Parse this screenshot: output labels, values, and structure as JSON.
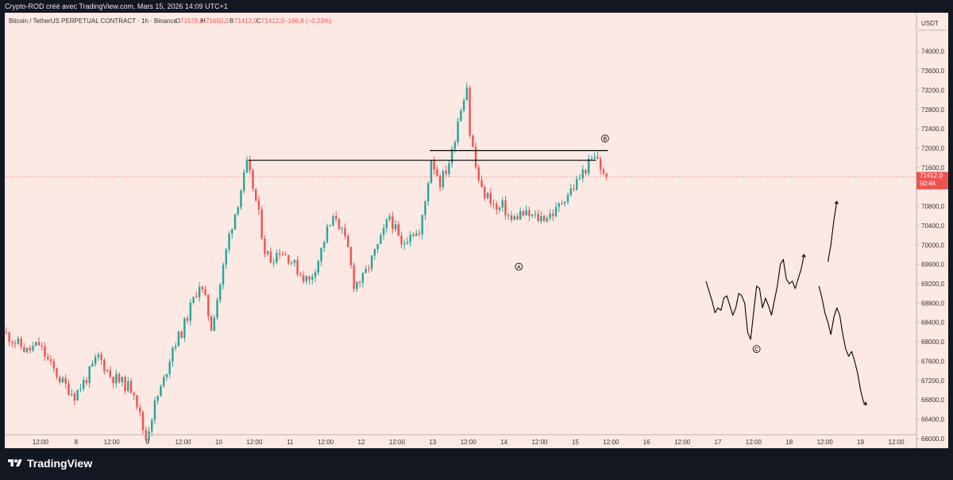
{
  "header": {
    "attribution": "Crypto-ROD créé avec TradingView.com, Mars 15, 2026 14:09 UTC+1"
  },
  "footer": {
    "logo_text": "TradingView"
  },
  "colors": {
    "panel_bg": "#fde9e4",
    "up": "#26a69a",
    "down": "#ef5350",
    "price_tag": "#ef5350",
    "text": "#333333"
  },
  "chart_data": {
    "type": "candlestick",
    "symbol_line": {
      "name": "Bitcoin / TetherUS PERPETUAL CONTRACT · 1h · Binance",
      "open_label": "O",
      "open": "71578,8",
      "high_label": "H",
      "high": "71650,0",
      "low_label": "B",
      "low": "71412,0",
      "close_label": "C",
      "close": "71412,0",
      "change": "−166,8 (−0,23%)"
    },
    "currency": "USDT",
    "ylim": [
      65800,
      74800
    ],
    "y_ticks": [
      "74000,0",
      "73600,0",
      "73200,0",
      "72800,0",
      "72400,0",
      "72000,0",
      "71600,0",
      "71200,0",
      "70800,0",
      "70400,0",
      "70000,0",
      "69600,0",
      "69200,0",
      "68800,0",
      "68400,0",
      "68000,0",
      "67600,0",
      "67200,0",
      "66800,0",
      "66400,0",
      "66000,0"
    ],
    "y_tick_values": [
      74000,
      73600,
      73200,
      72800,
      72400,
      72000,
      71600,
      71200,
      70800,
      70400,
      70000,
      69600,
      69200,
      68800,
      68400,
      68000,
      67600,
      67200,
      66800,
      66400,
      66000
    ],
    "x_ticks": [
      "12:00",
      "8",
      "12:00",
      "9",
      "12:00",
      "10",
      "12:00",
      "11",
      "12:00",
      "12",
      "12:00",
      "13",
      "12:00",
      "14",
      "12:00",
      "15",
      "12:00",
      "16",
      "12:00",
      "17",
      "12:00",
      "18",
      "12:00",
      "19",
      "12:00"
    ],
    "x_tick_hours": [
      12,
      24,
      36,
      48,
      60,
      72,
      84,
      96,
      108,
      120,
      132,
      144,
      156,
      168,
      180,
      192,
      204,
      216,
      228,
      240,
      252,
      264,
      276,
      288,
      300
    ],
    "x_start_hour": 0,
    "x_end_hour": 302,
    "current_price": "71412,0",
    "countdown": "50:44",
    "current_price_value": 71412,
    "price_waypoints": [
      [
        0,
        68200
      ],
      [
        4,
        68000
      ],
      [
        8,
        67800
      ],
      [
        12,
        67950
      ],
      [
        16,
        67500
      ],
      [
        20,
        67150
      ],
      [
        24,
        66900
      ],
      [
        28,
        67250
      ],
      [
        32,
        67700
      ],
      [
        36,
        67300
      ],
      [
        40,
        67150
      ],
      [
        44,
        67000
      ],
      [
        47,
        66200
      ],
      [
        48,
        66000
      ],
      [
        51,
        66700
      ],
      [
        54,
        67200
      ],
      [
        57,
        67900
      ],
      [
        60,
        68200
      ],
      [
        63,
        68700
      ],
      [
        66,
        69200
      ],
      [
        68,
        68850
      ],
      [
        70,
        68300
      ],
      [
        73,
        69200
      ],
      [
        76,
        70200
      ],
      [
        79,
        70900
      ],
      [
        82,
        71650
      ],
      [
        84,
        71200
      ],
      [
        86,
        70600
      ],
      [
        88,
        69900
      ],
      [
        90,
        69700
      ],
      [
        93,
        69900
      ],
      [
        96,
        69750
      ],
      [
        100,
        69400
      ],
      [
        103,
        69250
      ],
      [
        106,
        69700
      ],
      [
        109,
        70300
      ],
      [
        112,
        70600
      ],
      [
        114,
        70250
      ],
      [
        116,
        69900
      ],
      [
        118,
        69200
      ],
      [
        121,
        69300
      ],
      [
        124,
        69700
      ],
      [
        127,
        70100
      ],
      [
        130,
        70600
      ],
      [
        132,
        70300
      ],
      [
        134,
        69950
      ],
      [
        137,
        70300
      ],
      [
        140,
        70200
      ],
      [
        142,
        70900
      ],
      [
        144,
        71800
      ],
      [
        147,
        71300
      ],
      [
        149,
        71550
      ],
      [
        151,
        71900
      ],
      [
        153,
        72600
      ],
      [
        155,
        73100
      ],
      [
        156,
        73300
      ],
      [
        157,
        72300
      ],
      [
        158,
        72000
      ],
      [
        159,
        71600
      ],
      [
        161,
        71100
      ],
      [
        164,
        70950
      ],
      [
        166,
        70700
      ],
      [
        168,
        70800
      ],
      [
        171,
        70500
      ],
      [
        174,
        70650
      ],
      [
        177,
        70600
      ],
      [
        180,
        70550
      ],
      [
        183,
        70600
      ],
      [
        186,
        70700
      ],
      [
        189,
        71000
      ],
      [
        192,
        71200
      ],
      [
        195,
        71500
      ],
      [
        198,
        71750
      ],
      [
        200,
        71800
      ],
      [
        202,
        71412
      ]
    ],
    "horizontal_lines": [
      {
        "price": 71750,
        "from_hour": 82,
        "to_hour": 199
      },
      {
        "price": 71950,
        "from_hour": 143,
        "to_hour": 203
      }
    ],
    "annotations": [
      {
        "label": "A",
        "hour": 173,
        "price": 69550
      },
      {
        "label": "B",
        "hour": 202,
        "price": 72200
      },
      {
        "label": "C",
        "hour": 253,
        "price": 67850
      }
    ],
    "drawn_paths": [
      [
        [
          236,
          69250
        ],
        [
          238,
          68850
        ],
        [
          239,
          68600
        ],
        [
          240,
          68700
        ],
        [
          241,
          68650
        ],
        [
          242,
          68900
        ],
        [
          243,
          68950
        ],
        [
          244,
          68750
        ],
        [
          245,
          68550
        ],
        [
          246,
          68700
        ],
        [
          247,
          69000
        ],
        [
          248,
          68950
        ],
        [
          249,
          68800
        ],
        [
          250,
          68200
        ],
        [
          251,
          68050
        ],
        [
          252,
          68600
        ],
        [
          253,
          69150
        ],
        [
          254,
          69100
        ],
        [
          255,
          68700
        ],
        [
          256,
          68900
        ],
        [
          257,
          68750
        ],
        [
          258,
          68550
        ],
        [
          259,
          68850
        ],
        [
          260,
          69150
        ],
        [
          261,
          69600
        ],
        [
          262,
          69700
        ],
        [
          263,
          69300
        ],
        [
          264,
          69200
        ],
        [
          265,
          69250
        ],
        [
          266,
          69100
        ],
        [
          267,
          69300
        ],
        [
          268,
          69500
        ],
        [
          269,
          69800
        ]
      ],
      [
        [
          277,
          69650
        ],
        [
          278,
          70000
        ],
        [
          279,
          70500
        ],
        [
          280,
          70900
        ]
      ],
      [
        [
          274,
          69150
        ],
        [
          275,
          68900
        ],
        [
          276,
          68600
        ],
        [
          277,
          68400
        ],
        [
          278,
          68150
        ],
        [
          279,
          68500
        ],
        [
          280,
          68700
        ],
        [
          281,
          68550
        ],
        [
          282,
          68150
        ],
        [
          283,
          67850
        ],
        [
          284,
          67700
        ],
        [
          285,
          67800
        ],
        [
          286,
          67600
        ],
        [
          287,
          67350
        ],
        [
          288,
          67000
        ],
        [
          289,
          66750
        ],
        [
          290,
          66700
        ]
      ]
    ]
  }
}
